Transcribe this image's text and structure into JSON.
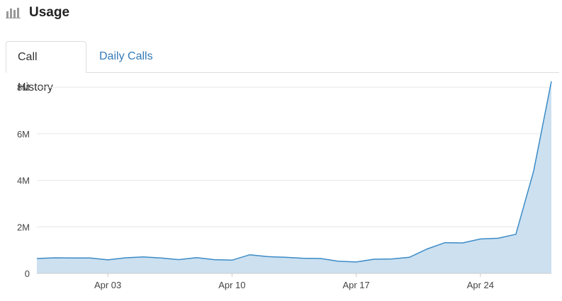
{
  "header": {
    "icon": "bar-chart-icon",
    "title": "Usage"
  },
  "tabs": [
    {
      "label": "Call History",
      "active": true
    },
    {
      "label": "Daily Calls",
      "active": false
    }
  ],
  "colors": {
    "line": "#3b8bc7",
    "fill": "#cce0f0",
    "grid": "#e6e6e6",
    "tab_link": "#337ab7"
  },
  "chart_data": {
    "type": "area",
    "x": [
      "Mar 30",
      "Mar 31",
      "Apr 01",
      "Apr 02",
      "Apr 03",
      "Apr 04",
      "Apr 05",
      "Apr 06",
      "Apr 07",
      "Apr 08",
      "Apr 09",
      "Apr 10",
      "Apr 11",
      "Apr 12",
      "Apr 13",
      "Apr 14",
      "Apr 15",
      "Apr 16",
      "Apr 17",
      "Apr 18",
      "Apr 19",
      "Apr 20",
      "Apr 21",
      "Apr 22",
      "Apr 23",
      "Apr 24",
      "Apr 25",
      "Apr 26",
      "Apr 27",
      "Apr 28"
    ],
    "values": [
      640000,
      670000,
      660000,
      660000,
      580000,
      670000,
      710000,
      660000,
      590000,
      680000,
      590000,
      570000,
      800000,
      720000,
      690000,
      650000,
      640000,
      520000,
      490000,
      610000,
      620000,
      690000,
      1050000,
      1320000,
      1310000,
      1480000,
      1510000,
      1680000,
      4400000,
      8250000
    ],
    "x_ticks": [
      "Apr 03",
      "Apr 10",
      "Apr 17",
      "Apr 24"
    ],
    "y_ticks": [
      0,
      2000000,
      4000000,
      6000000,
      8000000
    ],
    "y_tick_labels": [
      "0",
      "2M",
      "4M",
      "6M",
      "8M"
    ],
    "ylim": [
      0,
      8000000
    ],
    "grid": true,
    "legend": "none"
  }
}
